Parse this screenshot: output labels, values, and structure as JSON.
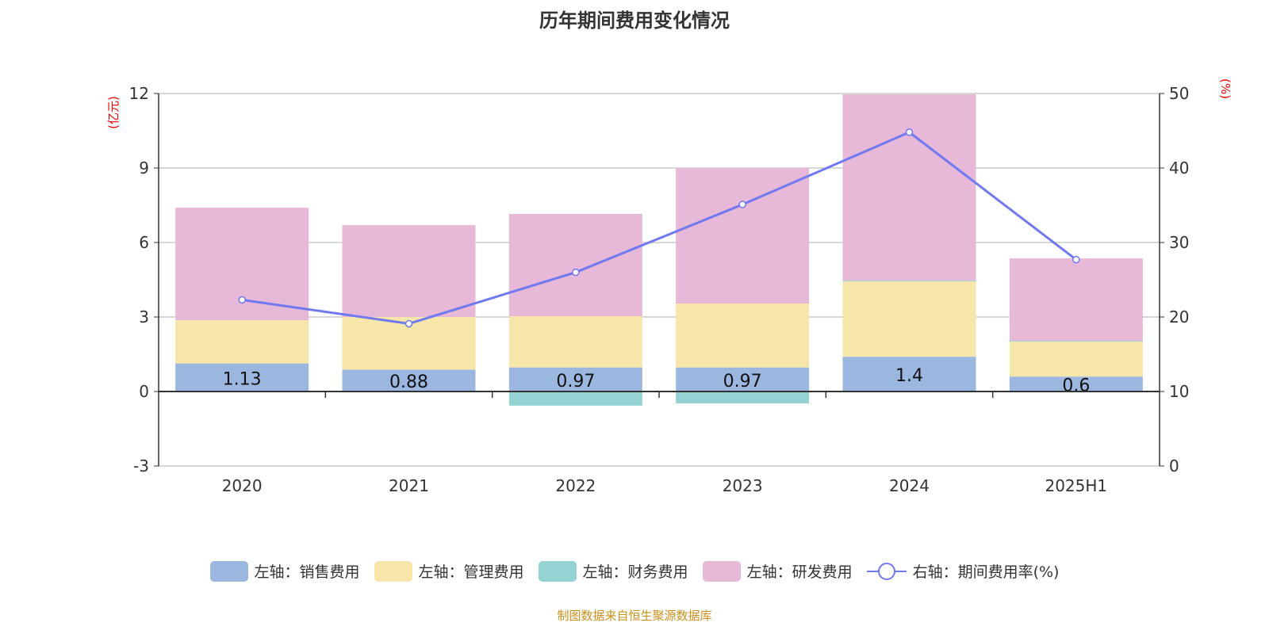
{
  "title": "历年期间费用变化情况",
  "source": "制图数据来自恒生聚源数据库",
  "chart_data": {
    "type": "bar",
    "categories": [
      "2020",
      "2021",
      "2022",
      "2023",
      "2024",
      "2025H1"
    ],
    "left_axis": {
      "label": "(亿元)",
      "range": [
        -3,
        12
      ],
      "ticks": [
        -3,
        0,
        3,
        6,
        9,
        12
      ]
    },
    "right_axis": {
      "label": "(%)",
      "range": [
        0,
        50
      ],
      "ticks": [
        0,
        10,
        20,
        30,
        40,
        50
      ]
    },
    "grid": true,
    "legend_position": "bottom",
    "series": [
      {
        "name": "左轴：销售费用",
        "type": "bar",
        "stack": true,
        "color": "#9bb7e0",
        "values": [
          1.13,
          0.88,
          0.97,
          0.97,
          1.4,
          0.6
        ],
        "labels": [
          "1.13",
          "0.88",
          "0.97",
          "0.97",
          "1.4",
          "0.6"
        ]
      },
      {
        "name": "左轴：管理费用",
        "type": "bar",
        "stack": true,
        "color": "#f7e6a9",
        "values": [
          1.74,
          2.12,
          2.06,
          2.57,
          3.04,
          1.41
        ]
      },
      {
        "name": "左轴：财务费用",
        "type": "bar",
        "stack": true,
        "color": "#95d2d3",
        "values": [
          0.0,
          -0.02,
          -0.57,
          -0.48,
          0.03,
          0.03
        ]
      },
      {
        "name": "左轴：研发费用",
        "type": "bar",
        "stack": true,
        "color": "#e7b8d8",
        "values": [
          4.53,
          3.7,
          4.12,
          5.46,
          7.5,
          3.32
        ]
      },
      {
        "name": "右轴：期间费用率(%)",
        "type": "line",
        "axis": "right",
        "color": "#7079f0",
        "values": [
          22.3,
          19.1,
          26.0,
          35.1,
          44.8,
          27.7
        ]
      }
    ]
  }
}
